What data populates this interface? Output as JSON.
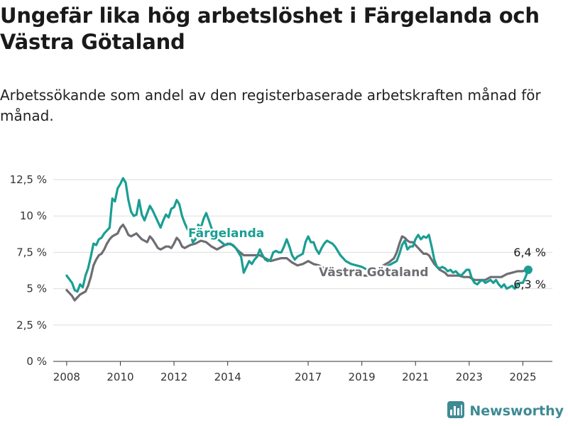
{
  "title": "Ungefär lika hög arbetslöshet i Färgelanda och Västra Götaland",
  "subtitle": "Arbetssökande som andel av den registerbaserade arbetskraften månad för månad.",
  "brand": {
    "name": "Newsworthy",
    "icon": "newsworthy-logo-icon"
  },
  "colors": {
    "fargelanda": "#1a9e93",
    "vastra_gotaland": "#6e6d73",
    "grid": "#dddddd",
    "axis": "#333333",
    "brand": "#3e8a94"
  },
  "chart_data": {
    "type": "line",
    "xlabel": "",
    "ylabel": "",
    "xlim": [
      2007.5,
      2026.1
    ],
    "ylim": [
      0,
      12.5
    ],
    "x_ticks": [
      2008,
      2010,
      2012,
      2014,
      2017,
      2019,
      2021,
      2023,
      2025
    ],
    "x_tick_labels": [
      "2008",
      "2010",
      "2012",
      "2014",
      "2017",
      "2019",
      "2021",
      "2023",
      "2025"
    ],
    "y_ticks": [
      0,
      2.5,
      5,
      7.5,
      10,
      12.5
    ],
    "y_tick_labels": [
      "0 %",
      "2,5 %",
      "5 %",
      "7,5 %",
      "10 %",
      "12,5 %"
    ],
    "grid": true,
    "legend": "direct labels on lines",
    "series": [
      {
        "name": "Färgelanda",
        "key": "fargelanda",
        "end_label": "6,3 %",
        "points": [
          [
            2008.0,
            5.9
          ],
          [
            2008.2,
            5.4
          ],
          [
            2008.3,
            4.9
          ],
          [
            2008.4,
            4.8
          ],
          [
            2008.5,
            5.3
          ],
          [
            2008.6,
            5.1
          ],
          [
            2008.7,
            5.9
          ],
          [
            2008.8,
            6.4
          ],
          [
            2008.9,
            7.2
          ],
          [
            2009.0,
            8.1
          ],
          [
            2009.1,
            8.0
          ],
          [
            2009.2,
            8.4
          ],
          [
            2009.3,
            8.5
          ],
          [
            2009.4,
            8.8
          ],
          [
            2009.5,
            9.0
          ],
          [
            2009.6,
            9.2
          ],
          [
            2009.7,
            11.2
          ],
          [
            2009.8,
            11.0
          ],
          [
            2009.9,
            11.9
          ],
          [
            2010.0,
            12.2
          ],
          [
            2010.1,
            12.6
          ],
          [
            2010.2,
            12.3
          ],
          [
            2010.3,
            11.1
          ],
          [
            2010.4,
            10.3
          ],
          [
            2010.5,
            10.0
          ],
          [
            2010.6,
            10.1
          ],
          [
            2010.7,
            11.1
          ],
          [
            2010.8,
            10.1
          ],
          [
            2010.9,
            9.7
          ],
          [
            2011.0,
            10.2
          ],
          [
            2011.1,
            10.7
          ],
          [
            2011.2,
            10.4
          ],
          [
            2011.3,
            10.0
          ],
          [
            2011.4,
            9.6
          ],
          [
            2011.5,
            9.2
          ],
          [
            2011.6,
            9.7
          ],
          [
            2011.7,
            10.1
          ],
          [
            2011.8,
            9.9
          ],
          [
            2011.9,
            10.5
          ],
          [
            2012.0,
            10.6
          ],
          [
            2012.1,
            11.1
          ],
          [
            2012.2,
            10.8
          ],
          [
            2012.3,
            10.0
          ],
          [
            2012.4,
            9.5
          ],
          [
            2012.5,
            9.1
          ],
          [
            2012.6,
            8.9
          ],
          [
            2012.7,
            8.2
          ],
          [
            2012.8,
            8.4
          ],
          [
            2012.9,
            9.4
          ],
          [
            2013.0,
            9.2
          ],
          [
            2013.1,
            9.8
          ],
          [
            2013.2,
            10.2
          ],
          [
            2013.3,
            9.7
          ],
          [
            2013.5,
            8.6
          ],
          [
            2013.7,
            8.3
          ],
          [
            2013.9,
            8.0
          ],
          [
            2014.1,
            8.1
          ],
          [
            2014.3,
            7.8
          ],
          [
            2014.5,
            7.2
          ],
          [
            2014.6,
            6.1
          ],
          [
            2014.7,
            6.5
          ],
          [
            2014.8,
            6.9
          ],
          [
            2014.9,
            6.7
          ],
          [
            2015.0,
            7.0
          ],
          [
            2015.1,
            7.2
          ],
          [
            2015.2,
            7.7
          ],
          [
            2015.3,
            7.3
          ],
          [
            2015.4,
            7.0
          ],
          [
            2015.5,
            6.9
          ],
          [
            2015.6,
            7.0
          ],
          [
            2015.7,
            7.5
          ],
          [
            2015.8,
            7.6
          ],
          [
            2015.9,
            7.5
          ],
          [
            2016.0,
            7.5
          ],
          [
            2016.1,
            7.9
          ],
          [
            2016.2,
            8.4
          ],
          [
            2016.3,
            7.9
          ],
          [
            2016.4,
            7.3
          ],
          [
            2016.5,
            7.0
          ],
          [
            2016.6,
            7.2
          ],
          [
            2016.7,
            7.3
          ],
          [
            2016.8,
            7.4
          ],
          [
            2016.9,
            8.2
          ],
          [
            2017.0,
            8.6
          ],
          [
            2017.1,
            8.2
          ],
          [
            2017.2,
            8.2
          ],
          [
            2017.3,
            7.7
          ],
          [
            2017.4,
            7.4
          ],
          [
            2017.5,
            7.8
          ],
          [
            2017.6,
            8.1
          ],
          [
            2017.7,
            8.3
          ],
          [
            2017.8,
            8.2
          ],
          [
            2017.9,
            8.1
          ],
          [
            2018.0,
            7.9
          ],
          [
            2018.2,
            7.3
          ],
          [
            2018.4,
            6.9
          ],
          [
            2018.6,
            6.7
          ],
          [
            2018.8,
            6.6
          ],
          [
            2019.0,
            6.5
          ],
          [
            2019.2,
            6.3
          ],
          [
            2019.4,
            6.0
          ],
          [
            2019.5,
            5.9
          ],
          [
            2019.7,
            6.2
          ],
          [
            2019.9,
            6.5
          ],
          [
            2020.1,
            6.7
          ],
          [
            2020.3,
            6.9
          ],
          [
            2020.4,
            7.4
          ],
          [
            2020.5,
            8.0
          ],
          [
            2020.6,
            8.3
          ],
          [
            2020.7,
            7.7
          ],
          [
            2020.8,
            7.9
          ],
          [
            2020.9,
            7.9
          ],
          [
            2021.0,
            8.4
          ],
          [
            2021.1,
            8.7
          ],
          [
            2021.2,
            8.4
          ],
          [
            2021.3,
            8.6
          ],
          [
            2021.4,
            8.5
          ],
          [
            2021.5,
            8.7
          ],
          [
            2021.6,
            7.9
          ],
          [
            2021.7,
            7.0
          ],
          [
            2021.8,
            6.5
          ],
          [
            2021.9,
            6.4
          ],
          [
            2022.0,
            6.5
          ],
          [
            2022.1,
            6.4
          ],
          [
            2022.2,
            6.2
          ],
          [
            2022.3,
            6.3
          ],
          [
            2022.4,
            6.1
          ],
          [
            2022.5,
            6.2
          ],
          [
            2022.6,
            6.0
          ],
          [
            2022.7,
            5.9
          ],
          [
            2022.8,
            6.1
          ],
          [
            2022.9,
            6.3
          ],
          [
            2023.0,
            6.3
          ],
          [
            2023.1,
            5.7
          ],
          [
            2023.2,
            5.4
          ],
          [
            2023.3,
            5.3
          ],
          [
            2023.4,
            5.5
          ],
          [
            2023.5,
            5.6
          ],
          [
            2023.6,
            5.4
          ],
          [
            2023.7,
            5.5
          ],
          [
            2023.8,
            5.6
          ],
          [
            2023.9,
            5.4
          ],
          [
            2024.0,
            5.6
          ],
          [
            2024.1,
            5.3
          ],
          [
            2024.2,
            5.1
          ],
          [
            2024.3,
            5.3
          ],
          [
            2024.4,
            5.0
          ],
          [
            2024.5,
            5.1
          ],
          [
            2024.6,
            5.2
          ],
          [
            2024.7,
            5.0
          ],
          [
            2024.8,
            5.3
          ],
          [
            2024.9,
            5.4
          ],
          [
            2025.0,
            5.4
          ],
          [
            2025.1,
            5.8
          ],
          [
            2025.2,
            6.3
          ]
        ]
      },
      {
        "name": "Västra Götaland",
        "key": "vastra_gotaland",
        "end_label": "6,4 %",
        "points": [
          [
            2008.0,
            4.9
          ],
          [
            2008.1,
            4.7
          ],
          [
            2008.2,
            4.5
          ],
          [
            2008.3,
            4.2
          ],
          [
            2008.4,
            4.4
          ],
          [
            2008.5,
            4.6
          ],
          [
            2008.6,
            4.7
          ],
          [
            2008.7,
            4.8
          ],
          [
            2008.8,
            5.2
          ],
          [
            2008.9,
            5.8
          ],
          [
            2009.0,
            6.6
          ],
          [
            2009.1,
            7.0
          ],
          [
            2009.2,
            7.3
          ],
          [
            2009.3,
            7.4
          ],
          [
            2009.4,
            7.7
          ],
          [
            2009.5,
            8.1
          ],
          [
            2009.6,
            8.4
          ],
          [
            2009.7,
            8.6
          ],
          [
            2009.8,
            8.7
          ],
          [
            2009.9,
            8.8
          ],
          [
            2010.0,
            9.2
          ],
          [
            2010.1,
            9.4
          ],
          [
            2010.2,
            9.1
          ],
          [
            2010.3,
            8.7
          ],
          [
            2010.4,
            8.6
          ],
          [
            2010.5,
            8.7
          ],
          [
            2010.6,
            8.8
          ],
          [
            2010.7,
            8.6
          ],
          [
            2010.8,
            8.4
          ],
          [
            2010.9,
            8.3
          ],
          [
            2011.0,
            8.2
          ],
          [
            2011.1,
            8.6
          ],
          [
            2011.2,
            8.4
          ],
          [
            2011.3,
            8.1
          ],
          [
            2011.4,
            7.8
          ],
          [
            2011.5,
            7.7
          ],
          [
            2011.6,
            7.8
          ],
          [
            2011.7,
            7.9
          ],
          [
            2011.8,
            7.9
          ],
          [
            2011.9,
            7.8
          ],
          [
            2012.0,
            8.1
          ],
          [
            2012.1,
            8.5
          ],
          [
            2012.2,
            8.3
          ],
          [
            2012.3,
            7.9
          ],
          [
            2012.4,
            7.8
          ],
          [
            2012.5,
            7.9
          ],
          [
            2012.6,
            8.0
          ],
          [
            2012.8,
            8.1
          ],
          [
            2013.0,
            8.3
          ],
          [
            2013.2,
            8.2
          ],
          [
            2013.4,
            7.9
          ],
          [
            2013.6,
            7.7
          ],
          [
            2013.8,
            7.9
          ],
          [
            2014.0,
            8.1
          ],
          [
            2014.2,
            8.0
          ],
          [
            2014.4,
            7.6
          ],
          [
            2014.6,
            7.3
          ],
          [
            2014.8,
            7.3
          ],
          [
            2015.0,
            7.3
          ],
          [
            2015.2,
            7.3
          ],
          [
            2015.4,
            7.1
          ],
          [
            2015.6,
            6.9
          ],
          [
            2015.8,
            7.0
          ],
          [
            2016.0,
            7.1
          ],
          [
            2016.2,
            7.1
          ],
          [
            2016.4,
            6.8
          ],
          [
            2016.6,
            6.6
          ],
          [
            2016.8,
            6.7
          ],
          [
            2017.0,
            6.9
          ],
          [
            2017.2,
            6.7
          ],
          [
            2017.4,
            6.6
          ],
          [
            2017.6,
            6.4
          ],
          [
            2017.8,
            6.4
          ],
          [
            2018.0,
            6.3
          ],
          [
            2018.2,
            6.2
          ],
          [
            2018.4,
            6.0
          ],
          [
            2018.6,
            6.0
          ],
          [
            2018.8,
            6.0
          ],
          [
            2019.0,
            5.9
          ],
          [
            2019.2,
            5.9
          ],
          [
            2019.4,
            6.0
          ],
          [
            2019.6,
            6.2
          ],
          [
            2019.8,
            6.6
          ],
          [
            2020.0,
            6.8
          ],
          [
            2020.2,
            7.1
          ],
          [
            2020.3,
            7.5
          ],
          [
            2020.4,
            8.1
          ],
          [
            2020.5,
            8.6
          ],
          [
            2020.6,
            8.5
          ],
          [
            2020.7,
            8.3
          ],
          [
            2020.8,
            8.2
          ],
          [
            2020.9,
            8.2
          ],
          [
            2021.0,
            8.0
          ],
          [
            2021.1,
            7.8
          ],
          [
            2021.2,
            7.6
          ],
          [
            2021.3,
            7.4
          ],
          [
            2021.4,
            7.4
          ],
          [
            2021.5,
            7.3
          ],
          [
            2021.6,
            7.0
          ],
          [
            2021.7,
            6.7
          ],
          [
            2021.8,
            6.5
          ],
          [
            2021.9,
            6.3
          ],
          [
            2022.0,
            6.2
          ],
          [
            2022.1,
            6.1
          ],
          [
            2022.2,
            5.9
          ],
          [
            2022.4,
            5.9
          ],
          [
            2022.6,
            5.9
          ],
          [
            2022.8,
            5.8
          ],
          [
            2023.0,
            5.8
          ],
          [
            2023.2,
            5.6
          ],
          [
            2023.4,
            5.6
          ],
          [
            2023.6,
            5.6
          ],
          [
            2023.8,
            5.8
          ],
          [
            2024.0,
            5.8
          ],
          [
            2024.2,
            5.8
          ],
          [
            2024.4,
            6.0
          ],
          [
            2024.6,
            6.1
          ],
          [
            2024.8,
            6.2
          ],
          [
            2025.0,
            6.2
          ],
          [
            2025.2,
            6.4
          ]
        ]
      }
    ]
  }
}
